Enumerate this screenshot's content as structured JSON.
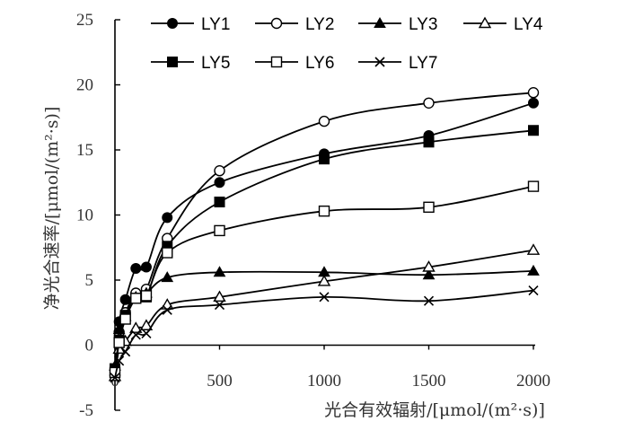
{
  "chart_data": {
    "type": "line",
    "xlabel": "光合有效辐射/[μmol/(m²·s)]",
    "ylabel": "净光合速率/[μmol/(m²·s)]",
    "xlim": [
      0,
      2000
    ],
    "ylim": [
      -5,
      25
    ],
    "x_ticks": [
      "0",
      "500",
      "1000",
      "1500",
      "2000"
    ],
    "y_ticks": [
      "-5",
      "0",
      "5",
      "10",
      "15",
      "20",
      "25"
    ],
    "grid": false,
    "legend_position": "top",
    "x": [
      0,
      20,
      50,
      100,
      150,
      250,
      500,
      1000,
      1500,
      2000
    ],
    "series": [
      {
        "name": "LY1",
        "marker": "filled-circle",
        "values": [
          -2.0,
          1.8,
          3.5,
          5.9,
          6.0,
          9.8,
          12.5,
          14.7,
          16.1,
          18.6
        ]
      },
      {
        "name": "LY2",
        "marker": "open-circle",
        "values": [
          -2.3,
          1.0,
          2.5,
          4.0,
          4.3,
          8.2,
          13.4,
          17.2,
          18.6,
          19.4
        ]
      },
      {
        "name": "LY3",
        "marker": "filled-triangle",
        "values": [
          -1.6,
          1.2,
          2.2,
          3.7,
          4.0,
          5.2,
          5.6,
          5.6,
          5.4,
          5.7
        ]
      },
      {
        "name": "LY4",
        "marker": "open-triangle",
        "values": [
          -2.4,
          -0.3,
          0.3,
          1.3,
          1.5,
          3.1,
          3.7,
          4.9,
          6.0,
          7.3
        ]
      },
      {
        "name": "LY5",
        "marker": "filled-square",
        "values": [
          -1.8,
          0.4,
          2.3,
          3.6,
          3.7,
          7.6,
          11.0,
          14.3,
          15.6,
          16.5
        ]
      },
      {
        "name": "LY6",
        "marker": "open-square",
        "values": [
          -2.1,
          0.2,
          2.0,
          3.6,
          3.8,
          7.1,
          8.8,
          10.3,
          10.6,
          12.2
        ]
      },
      {
        "name": "LY7",
        "marker": "x-cross",
        "values": [
          -2.5,
          -1.2,
          -0.5,
          0.8,
          0.9,
          2.7,
          3.1,
          3.7,
          3.4,
          4.2
        ]
      }
    ]
  }
}
